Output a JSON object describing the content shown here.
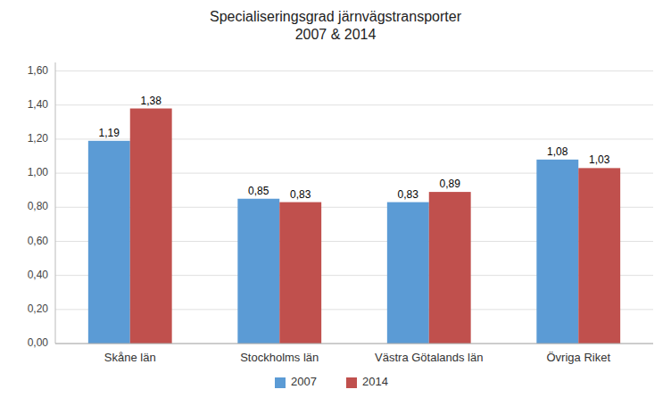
{
  "chart_data": {
    "type": "bar",
    "title": "Specialiseringsgrad järnvägstransporter\n2007 & 2014",
    "categories": [
      "Skåne län",
      "Stockholms län",
      "Västra Götalands län",
      "Övriga Riket"
    ],
    "series": [
      {
        "name": "2007",
        "color": "#5B9BD5",
        "values": [
          1.19,
          0.85,
          0.83,
          1.08
        ],
        "value_labels": [
          "1,19",
          "0,85",
          "0,83",
          "1,08"
        ]
      },
      {
        "name": "2014",
        "color": "#C0504D",
        "values": [
          1.38,
          0.83,
          0.89,
          1.03
        ],
        "value_labels": [
          "1,38",
          "0,83",
          "0,89",
          "1,03"
        ]
      }
    ],
    "ylim": [
      0,
      1.65
    ],
    "yticks": [
      {
        "value": 0.0,
        "label": "0,00"
      },
      {
        "value": 0.2,
        "label": "0,20"
      },
      {
        "value": 0.4,
        "label": "0,40"
      },
      {
        "value": 0.6,
        "label": "0,60"
      },
      {
        "value": 0.8,
        "label": "0,80"
      },
      {
        "value": 1.0,
        "label": "1,00"
      },
      {
        "value": 1.2,
        "label": "1,20"
      },
      {
        "value": 1.4,
        "label": "1,40"
      },
      {
        "value": 1.6,
        "label": "1,60"
      }
    ],
    "grid": true,
    "legend": "bottom",
    "data_labels": true
  }
}
